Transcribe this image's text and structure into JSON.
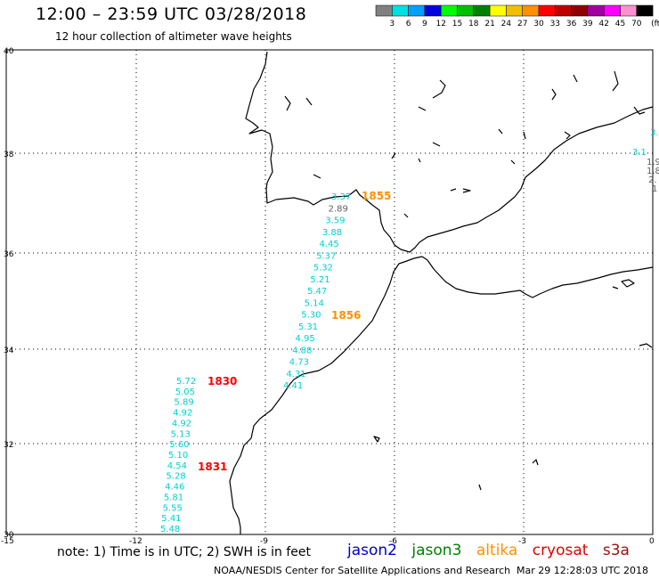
{
  "header": {
    "title": "12:00 – 23:59 UTC 03/28/2018",
    "subtitle": "12 hour collection of altimeter wave heights"
  },
  "colorbar": {
    "unit": "(ft)",
    "bins": [
      {
        "color": "#808080",
        "label": "3"
      },
      {
        "color": "#00e0e0",
        "label": "6"
      },
      {
        "color": "#00a0ff",
        "label": "9"
      },
      {
        "color": "#0000e0",
        "label": "12"
      },
      {
        "color": "#00ff00",
        "label": "15"
      },
      {
        "color": "#00c000",
        "label": "18"
      },
      {
        "color": "#008000",
        "label": "21"
      },
      {
        "color": "#ffff00",
        "label": "24"
      },
      {
        "color": "#f0c000",
        "label": "27"
      },
      {
        "color": "#ff9000",
        "label": "30"
      },
      {
        "color": "#ff0000",
        "label": "33"
      },
      {
        "color": "#c00000",
        "label": "36"
      },
      {
        "color": "#900000",
        "label": "39"
      },
      {
        "color": "#a000a0",
        "label": "42"
      },
      {
        "color": "#ff00ff",
        "label": "45"
      },
      {
        "color": "#ff90d0",
        "label": "70"
      },
      {
        "color": "#000000",
        "label": ""
      }
    ]
  },
  "map": {
    "lon_labels": [
      "-15",
      "-12",
      "-9",
      "-6",
      "-3",
      "0"
    ],
    "lat_labels": [
      "40",
      "38",
      "36",
      "34",
      "32",
      "30"
    ],
    "passes": [
      {
        "satellite": "altika",
        "time": "1855",
        "time_color": "#ff9000",
        "value_color": "#00d0d0",
        "values": [
          "3.37",
          "2.89",
          "3.59",
          "3.88",
          "4.45",
          "5.37",
          "5.32",
          "5.21",
          "5.47",
          "5.14",
          "5.30",
          "5.31",
          "4.95",
          "4.88",
          "4.73",
          "4.31",
          "4.41"
        ]
      },
      {
        "satellite": "altika",
        "time": "1856",
        "time_color": "#ff9000"
      },
      {
        "satellite": "cryosat",
        "time": "1830",
        "time_color": "#ff0000",
        "value_color": "#00d0d0",
        "values": [
          "5.72",
          "5.05",
          "5.89",
          "4.92",
          "4.92",
          "5.13",
          "5.60",
          "5.10",
          "4.54",
          "5.28",
          "4.46",
          "5.81",
          "5.55",
          "5.41",
          "5.48"
        ]
      },
      {
        "satellite": "cryosat",
        "time": "1831",
        "time_color": "#ff0000"
      },
      {
        "satellite": "edge",
        "values": [
          "3.",
          "3.1",
          "1.9",
          "1.8",
          "2.",
          "1"
        ]
      }
    ]
  },
  "footer": {
    "note": "note:  1) Time is in UTC;  2) SWH is in feet",
    "satellites": [
      {
        "name": "jason2",
        "color": "#0000d0"
      },
      {
        "name": "jason3",
        "color": "#008000"
      },
      {
        "name": "altika",
        "color": "#ff9000"
      },
      {
        "name": "cryosat",
        "color": "#e00000"
      },
      {
        "name": "s3a",
        "color": "#a01010"
      }
    ],
    "credit": "NOAA/NESDIS Center for Satellite Applications and Research",
    "timestamp": "Mar 29 12:28:03 UTC 2018"
  }
}
